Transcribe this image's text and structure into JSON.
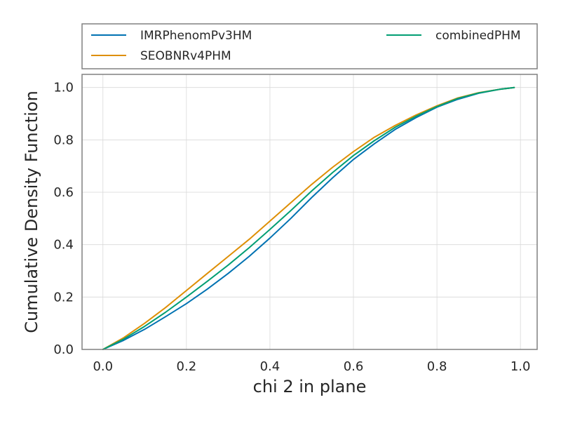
{
  "chart_data": {
    "type": "line",
    "title": "",
    "xlabel": "chi 2 in plane",
    "ylabel": "Cumulative Density Function",
    "xlim": [
      -0.05,
      1.04
    ],
    "ylim": [
      0.0,
      1.05
    ],
    "xticks": [
      "0.0",
      "0.2",
      "0.4",
      "0.6",
      "0.8",
      "1.0"
    ],
    "yticks": [
      "0.0",
      "0.2",
      "0.4",
      "0.6",
      "0.8",
      "1.0"
    ],
    "grid": true,
    "legend_placement": "above plot, two columns",
    "series": [
      {
        "name": "IMRPhenomPv3HM",
        "color": "#0072b2",
        "x": [
          0.0,
          0.05,
          0.1,
          0.15,
          0.2,
          0.25,
          0.3,
          0.35,
          0.4,
          0.45,
          0.5,
          0.55,
          0.6,
          0.65,
          0.7,
          0.75,
          0.8,
          0.85,
          0.9,
          0.95,
          0.985
        ],
        "y": [
          0.0,
          0.035,
          0.077,
          0.125,
          0.175,
          0.23,
          0.29,
          0.355,
          0.425,
          0.5,
          0.58,
          0.655,
          0.725,
          0.785,
          0.84,
          0.885,
          0.925,
          0.955,
          0.978,
          0.993,
          1.0
        ]
      },
      {
        "name": "SEOBNRv4PHM",
        "color": "#de8f05",
        "x": [
          0.0,
          0.05,
          0.1,
          0.15,
          0.2,
          0.25,
          0.3,
          0.35,
          0.4,
          0.45,
          0.5,
          0.55,
          0.6,
          0.65,
          0.7,
          0.75,
          0.8,
          0.85,
          0.9,
          0.95,
          0.985
        ],
        "y": [
          0.0,
          0.045,
          0.1,
          0.16,
          0.225,
          0.29,
          0.355,
          0.42,
          0.49,
          0.56,
          0.63,
          0.695,
          0.755,
          0.81,
          0.855,
          0.895,
          0.93,
          0.96,
          0.98,
          0.993,
          1.0
        ]
      },
      {
        "name": "combinedPHM",
        "color": "#029e73",
        "x": [
          0.0,
          0.05,
          0.1,
          0.15,
          0.2,
          0.25,
          0.3,
          0.35,
          0.4,
          0.45,
          0.5,
          0.55,
          0.6,
          0.65,
          0.7,
          0.75,
          0.8,
          0.85,
          0.9,
          0.95,
          0.985
        ],
        "y": [
          0.0,
          0.04,
          0.088,
          0.142,
          0.2,
          0.26,
          0.322,
          0.388,
          0.458,
          0.53,
          0.605,
          0.675,
          0.74,
          0.797,
          0.848,
          0.89,
          0.927,
          0.958,
          0.979,
          0.993,
          1.0
        ]
      }
    ]
  }
}
